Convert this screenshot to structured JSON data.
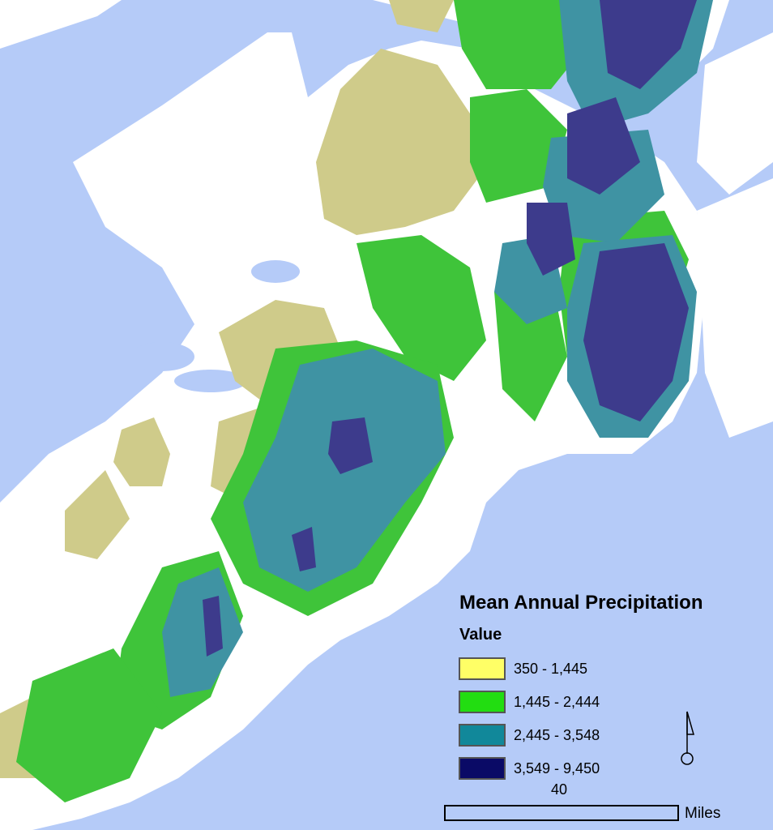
{
  "legend": {
    "title": "Mean Annual Precipitation",
    "subtitle": "Value",
    "classes": [
      {
        "label": "350 - 1,445",
        "color": "#ffff66"
      },
      {
        "label": "1,445 - 2,444",
        "color": "#22dd11"
      },
      {
        "label": "2,445 - 3,548",
        "color": "#11889a"
      },
      {
        "label": "3,549 - 9,450",
        "color": "#0a0a66"
      }
    ]
  },
  "scale_bar": {
    "value": "40",
    "unit": "Miles"
  },
  "north_arrow": "north-arrow-icon",
  "colors": {
    "water": "#b5cbf8",
    "land": "#ffffff"
  }
}
